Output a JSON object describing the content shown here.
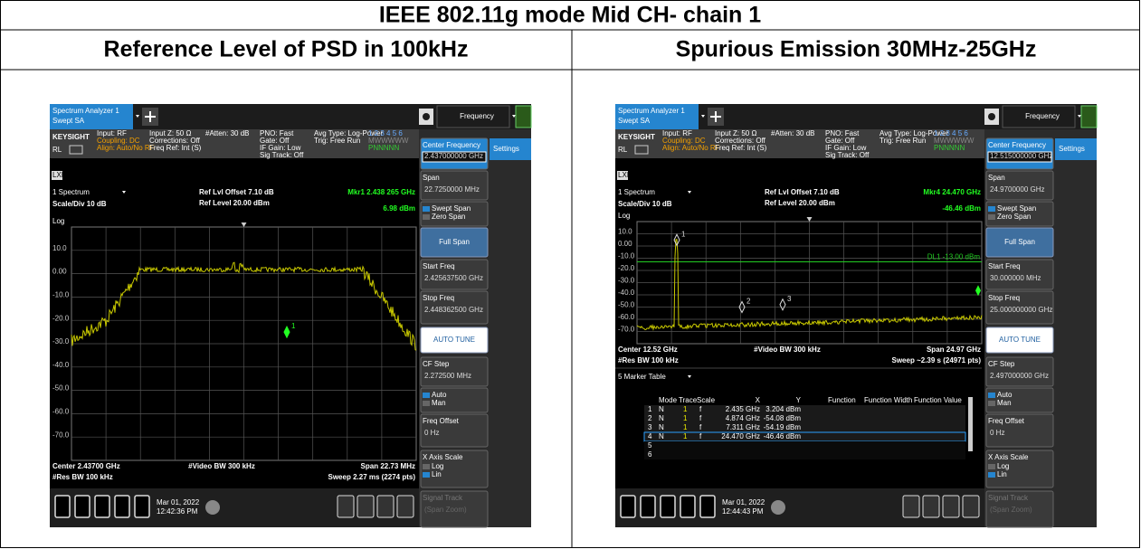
{
  "title": "IEEE 802.11g mode Mid CH- chain 1",
  "columns": [
    "Reference Level of PSD in 100kHz",
    "Spurious Emission 30MHz-25GHz"
  ],
  "screens": [
    {
      "tab": [
        "Spectrum Analyzer 1",
        "Swept SA"
      ],
      "menu": "Frequency",
      "settings": "Settings",
      "brand": "KEYSIGHT",
      "rl": "RL",
      "lxi": "LXI",
      "status": [
        [
          "Input: RF",
          "Coupling: DC",
          "Align: Auto/No RF"
        ],
        [
          "Input Z: 50 Ω",
          "Corrections: Off",
          "Freq Ref: Int (S)"
        ],
        [
          "#Atten: 30 dB"
        ],
        [
          "PNO: Fast",
          "Gate: Off",
          "IF Gain: Low",
          "Sig Track: Off"
        ],
        [
          "Avg Type: Log-Power",
          "Trig: Free Run"
        ],
        [
          "1 2 3 4 5 6",
          "MWWWWW",
          "PNNNNN"
        ]
      ],
      "window": "1 Spectrum",
      "scale": "Scale/Div 10 dB",
      "ref_offset": "Ref Lvl Offset 7.10 dB",
      "ref_level": "Ref Level 20.00 dBm",
      "marker": [
        "Mkr1 2.438 265 GHz",
        "6.98 dBm"
      ],
      "marker_labels": [
        "1"
      ],
      "ylabels": [
        "Log",
        "10.0",
        "0.00",
        "-10.0",
        "-20.0",
        "-30.0",
        "-40.0",
        "-50.0",
        "-60.0",
        "-70.0"
      ],
      "footer": {
        "left": [
          "Center 2.43700 GHz",
          "#Res BW 100 kHz"
        ],
        "center": "#Video BW 300 kHz",
        "right": [
          "Span 22.73 MHz",
          "Sweep 2.27 ms (2274 pts)"
        ]
      },
      "softkeys": [
        {
          "label": "Center Frequency",
          "value": "2.437000000 GHz"
        },
        {
          "label": "Span",
          "value": "22.7250000 MHz"
        },
        {
          "options": [
            "Swept Span",
            "Zero Span"
          ]
        },
        {
          "button": "Full Span"
        },
        {
          "label": "Start Freq",
          "value": "2.425637500 GHz"
        },
        {
          "label": "Stop Freq",
          "value": "2.448362500 GHz"
        },
        {
          "button": "AUTO TUNE"
        },
        {
          "label": "CF Step",
          "value": "2.272500 MHz"
        },
        {
          "options": [
            "Auto",
            "Man"
          ]
        },
        {
          "label": "Freq Offset",
          "value": "0 Hz"
        },
        {
          "label": "X Axis Scale",
          "options": [
            "Log",
            "Lin"
          ]
        },
        {
          "label": "Signal Track",
          "value": "(Span Zoom)"
        }
      ],
      "date": [
        "Mar 01, 2022",
        "12:42:36 PM"
      ]
    },
    {
      "tab": [
        "Spectrum Analyzer 1",
        "Swept SA"
      ],
      "menu": "Frequency",
      "settings": "Settings",
      "brand": "KEYSIGHT",
      "rl": "RL",
      "lxi": "LXI",
      "status": [
        [
          "Input: RF",
          "Coupling: DC",
          "Align: Auto/No RF"
        ],
        [
          "Input Z: 50 Ω",
          "Corrections: Off",
          "Freq Ref: Int (S)"
        ],
        [
          "#Atten: 30 dB"
        ],
        [
          "PNO: Fast",
          "Gate: Off",
          "IF Gain: Low",
          "Sig Track: Off"
        ],
        [
          "Avg Type: Log-Power",
          "Trig: Free Run"
        ],
        [
          "1 2 3 4 5 6",
          "MWWWWW",
          "PNNNNN"
        ]
      ],
      "window": "1 Spectrum",
      "scale": "Scale/Div 10 dB",
      "ref_offset": "Ref Lvl Offset 7.10 dB",
      "ref_level": "Ref Level 20.00 dBm",
      "marker": [
        "Mkr4 24.470 GHz",
        "-46.46 dBm"
      ],
      "marker_labels": [
        "1",
        "2",
        "3"
      ],
      "dl": "DL1 -13.00 dBm",
      "ylabels": [
        "Log",
        "10.0",
        "0.00",
        "-10.0",
        "-20.0",
        "-30.0",
        "-40.0",
        "-50.0",
        "-60.0",
        "-70.0"
      ],
      "footer": {
        "left": [
          "Center 12.52 GHz",
          "#Res BW 100 kHz"
        ],
        "center": "#Video BW 300 kHz",
        "right": [
          "Span 24.97 GHz",
          "Sweep ~2.39 s (24971 pts)"
        ]
      },
      "marker_table": {
        "title": "5 Marker Table",
        "headers": [
          "Mode",
          "Trace",
          "Scale",
          "X",
          "Y",
          "Function",
          "Function Width",
          "Function Value"
        ],
        "rows": [
          [
            "1",
            "N",
            "1",
            "f",
            "2.435 GHz",
            "3.204 dBm"
          ],
          [
            "2",
            "N",
            "1",
            "f",
            "4.874 GHz",
            "-54.08 dBm"
          ],
          [
            "3",
            "N",
            "1",
            "f",
            "7.311 GHz",
            "-54.19 dBm"
          ],
          [
            "4",
            "N",
            "1",
            "f",
            "24.470 GHz",
            "-46.46 dBm"
          ],
          [
            "5"
          ],
          [
            "6"
          ]
        ]
      },
      "softkeys": [
        {
          "label": "Center Frequency",
          "value": "12.515000000 GHz"
        },
        {
          "label": "Span",
          "value": "24.9700000 GHz"
        },
        {
          "options": [
            "Swept Span",
            "Zero Span"
          ]
        },
        {
          "button": "Full Span"
        },
        {
          "label": "Start Freq",
          "value": "30.000000 MHz"
        },
        {
          "label": "Stop Freq",
          "value": "25.000000000 GHz"
        },
        {
          "button": "AUTO TUNE"
        },
        {
          "label": "CF Step",
          "value": "2.497000000 GHz"
        },
        {
          "options": [
            "Auto",
            "Man"
          ]
        },
        {
          "label": "Freq Offset",
          "value": "0 Hz"
        },
        {
          "label": "X Axis Scale",
          "options": [
            "Log",
            "Lin"
          ]
        },
        {
          "label": "Signal Track",
          "value": "(Span Zoom)"
        }
      ],
      "date": [
        "Mar 01, 2022",
        "12:44:43 PM"
      ]
    }
  ]
}
